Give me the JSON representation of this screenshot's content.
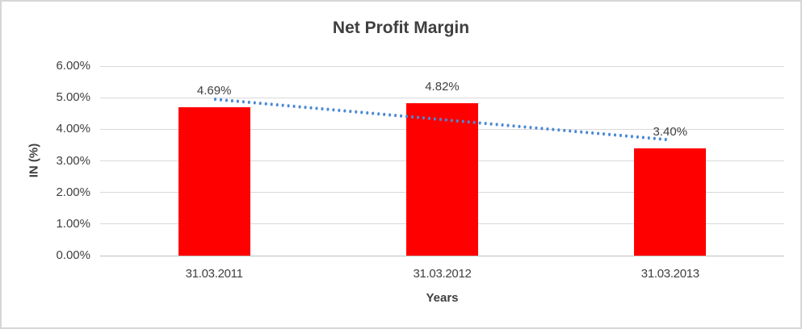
{
  "chart_data": {
    "type": "bar",
    "title": "Net Profit Margin",
    "categories": [
      "31.03.2011",
      "31.03.2012",
      "31.03.2013"
    ],
    "values": [
      4.69,
      4.82,
      3.4
    ],
    "data_labels": [
      "4.69%",
      "4.82%",
      "3.40%"
    ],
    "xlabel": "Years",
    "ylabel": "IN (%)",
    "ylim": [
      0,
      6
    ],
    "ytick_step": 1,
    "ytick_labels": [
      "0.00%",
      "1.00%",
      "2.00%",
      "3.00%",
      "4.00%",
      "5.00%",
      "6.00%"
    ],
    "grid": true,
    "legend": "none",
    "bar_color": "#FF0000",
    "trendline": {
      "type": "linear",
      "style": "dotted",
      "color": "#4A89D4",
      "start_value": 4.95,
      "end_value": 3.66
    }
  }
}
